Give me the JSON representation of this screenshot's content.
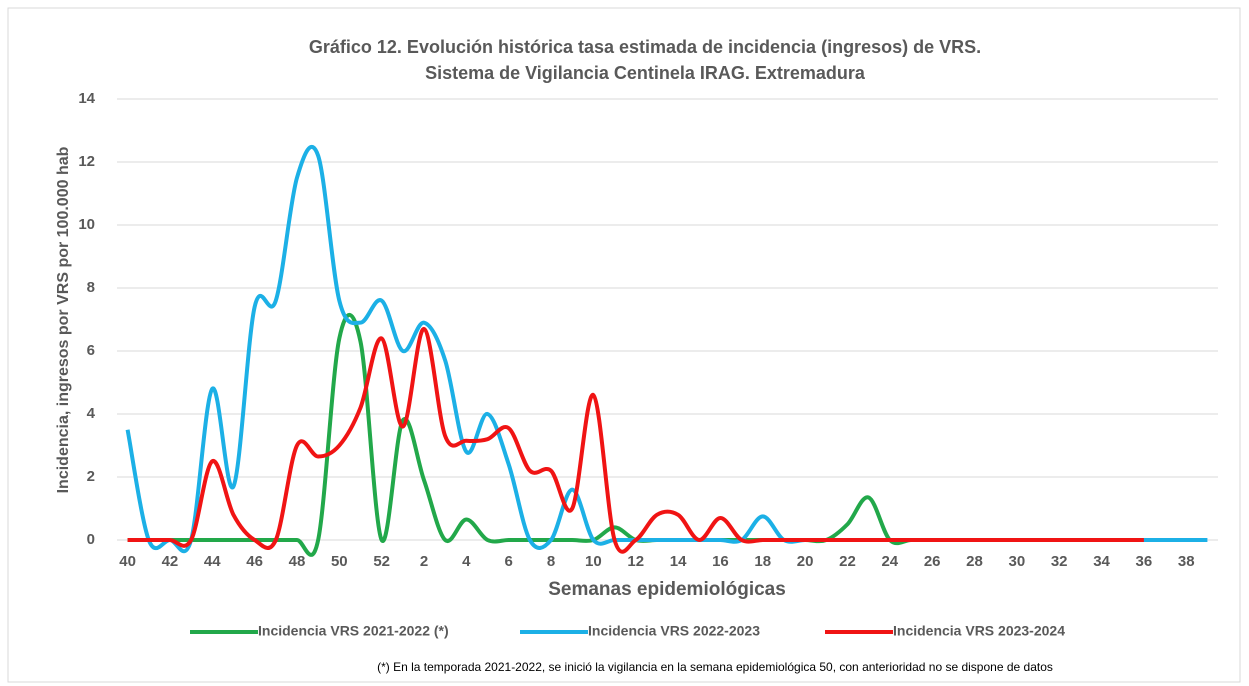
{
  "chart_data": {
    "type": "line",
    "title": "Gráfico 12. Evolución histórica tasa estimada de incidencia (ingresos) de VRS.",
    "subtitle": "Sistema de Vigilancia Centinela IRAG. Extremadura",
    "y_label": "Incidencia, ingresos por VRS por  100.000 hab",
    "x_label": "Semanas epidemiológicas",
    "note": "(*) En la temporada 2021-2022, se inició la vigilancia en la semana epidemiológica 50, con anterioridad no se dispone de datos",
    "categories": [
      40,
      null,
      42,
      null,
      44,
      null,
      46,
      null,
      48,
      null,
      50,
      null,
      52,
      null,
      2,
      null,
      4,
      null,
      6,
      null,
      8,
      null,
      10,
      null,
      12,
      null,
      14,
      null,
      16,
      null,
      18,
      null,
      20,
      null,
      22,
      null,
      24,
      null,
      26,
      null,
      28,
      null,
      30,
      null,
      32,
      null,
      34,
      null,
      36,
      null,
      38,
      null
    ],
    "ylim": [
      0,
      14
    ],
    "yticks": [
      0,
      2,
      4,
      6,
      8,
      10,
      12,
      14
    ],
    "grid": true,
    "legend": "bottom",
    "series": [
      {
        "name": "Incidencia VRS 2021-2022 (*)",
        "color": "#22a84a",
        "values": [
          0,
          0,
          0,
          0,
          0,
          0,
          0,
          0,
          0,
          0,
          6.4,
          6.3,
          0,
          3.8,
          1.9,
          0,
          0.65,
          0,
          0,
          0,
          0,
          0,
          0,
          0.4,
          0,
          0,
          0,
          0,
          0,
          0,
          0,
          0,
          0,
          0,
          0.5,
          1.35,
          0,
          0,
          0,
          0,
          0,
          0,
          0,
          0,
          0,
          0,
          0,
          0,
          0,
          null,
          null,
          null
        ]
      },
      {
        "name": "Incidencia VRS 2022-2023",
        "color": "#1cb0e6",
        "values": [
          3.5,
          0,
          0,
          0,
          4.8,
          1.7,
          7.4,
          7.6,
          11.5,
          12.2,
          7.6,
          6.9,
          7.6,
          6.0,
          6.9,
          5.7,
          2.8,
          4.0,
          2.4,
          0,
          0,
          1.6,
          0,
          0,
          0,
          0,
          0,
          0,
          0,
          0,
          0.75,
          0,
          0,
          0,
          0,
          0,
          0,
          0,
          0,
          0,
          0,
          0,
          0,
          0,
          0,
          0,
          0,
          0,
          0,
          0,
          0,
          0
        ]
      },
      {
        "name": "Incidencia VRS 2023-2024",
        "color": "#f01414",
        "values": [
          0,
          0,
          0,
          0,
          2.5,
          0.8,
          0,
          0,
          3.0,
          2.65,
          3.0,
          4.2,
          6.4,
          3.6,
          6.7,
          3.3,
          3.15,
          3.2,
          3.55,
          2.2,
          2.2,
          1.0,
          4.6,
          0,
          0,
          0.8,
          0.8,
          0,
          0.7,
          0,
          0,
          0,
          0,
          0,
          0,
          0,
          0,
          0,
          0,
          0,
          0,
          0,
          0,
          0,
          0,
          0,
          0,
          0,
          0,
          null,
          null,
          null
        ]
      }
    ]
  }
}
